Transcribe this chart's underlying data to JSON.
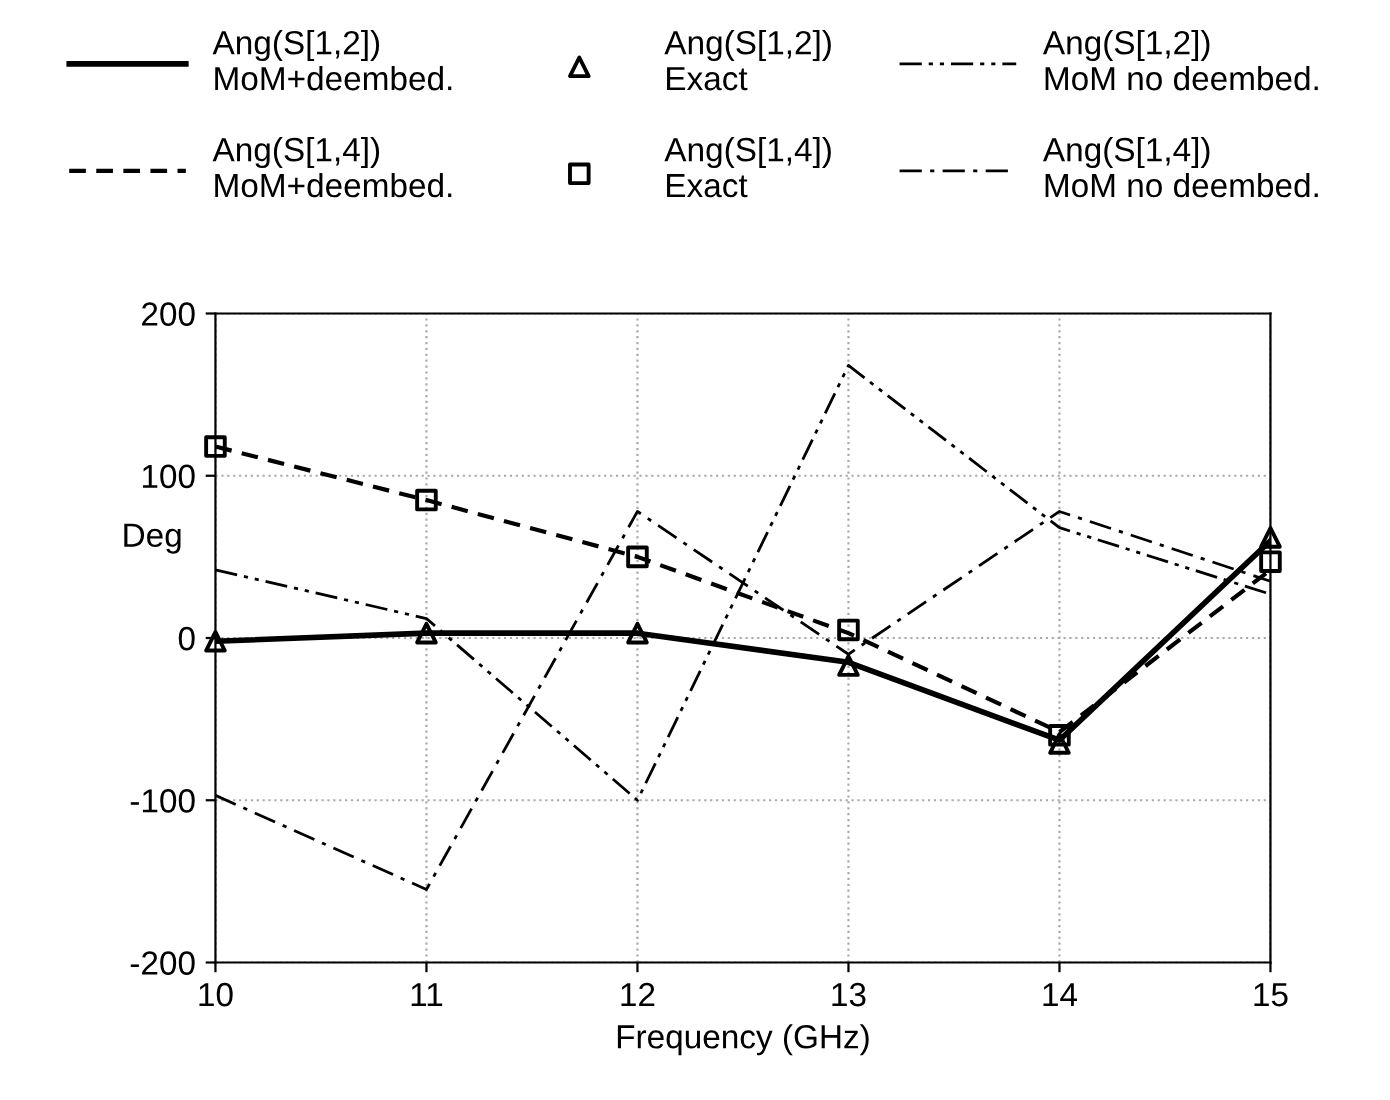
{
  "chart_data": {
    "type": "line",
    "xlabel": "Frequency (GHz)",
    "ylabel": "Deg",
    "x": [
      10,
      11,
      12,
      13,
      14,
      15
    ],
    "series": [
      {
        "name": "Ang(S[1,2])\nMoM+deembed.",
        "color": "#000000",
        "line_style": "solid",
        "marker": "none",
        "values": [
          -2,
          3,
          3,
          -15,
          -63,
          60
        ]
      },
      {
        "name": "Ang(S[1,4])\nMoM+deembed.",
        "color": "#000000",
        "line_style": "dashed",
        "marker": "none",
        "values": [
          118,
          85,
          50,
          3,
          -58,
          42
        ]
      },
      {
        "name": "Ang(S[1,2])\nExact",
        "color": "#000000",
        "type": "scatter",
        "marker": "triangle",
        "values": [
          -2,
          3,
          3,
          -17,
          -65,
          62
        ]
      },
      {
        "name": "Ang(S[1,4])\nExact",
        "color": "#000000",
        "type": "scatter",
        "marker": "square",
        "values": [
          118,
          85,
          50,
          5,
          -60,
          47
        ]
      },
      {
        "name": "Ang(S[1,2])\nMoM no deembed.",
        "color": "#000000",
        "line_style": "dash-dot-dot",
        "marker": "none",
        "values": [
          42,
          12,
          -100,
          168,
          68,
          27
        ]
      },
      {
        "name": "Ang(S[1,4])\nMoM no deembed.",
        "color": "#000000",
        "line_style": "dash-dot",
        "marker": "none",
        "values": [
          -97,
          -155,
          78,
          -10,
          78,
          35
        ]
      }
    ],
    "xlim": [
      10,
      15
    ],
    "ylim": [
      -200,
      200
    ],
    "xticks": [
      10,
      11,
      12,
      13,
      14,
      15
    ],
    "yticks": [
      -200,
      -100,
      0,
      100,
      200
    ],
    "grid": true,
    "legend": "top"
  }
}
